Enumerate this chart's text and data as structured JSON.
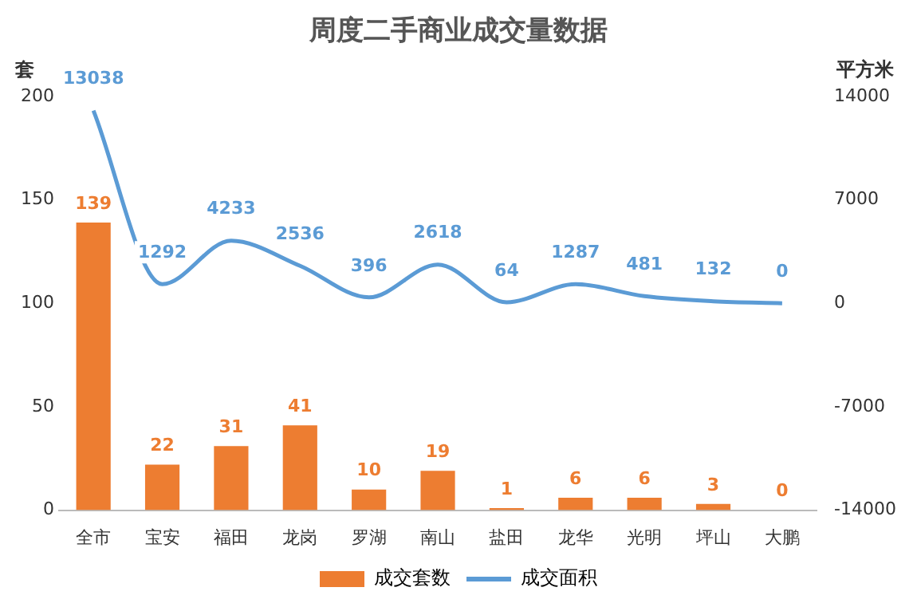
{
  "chart_data": {
    "type": "bar",
    "title": "周度二手商业成交量数据",
    "ylabel": "套",
    "y2label": "平方米",
    "categories": [
      "全市",
      "宝安",
      "福田",
      "龙岗",
      "罗湖",
      "南山",
      "盐田",
      "龙华",
      "光明",
      "坪山",
      "大鹏"
    ],
    "series": [
      {
        "name": "成交套数",
        "color": "#ed7d31",
        "values": [
          139,
          22,
          31,
          41,
          10,
          19,
          1,
          6,
          6,
          3,
          0
        ]
      },
      {
        "name": "成交面积",
        "type": "line",
        "axis": "y2",
        "color": "#5b9bd5",
        "marker": "none",
        "line_style": "solid",
        "values": [
          13038,
          1292,
          4233,
          2536,
          396,
          2618,
          64,
          1287,
          481,
          132,
          0
        ]
      }
    ],
    "ylim": [
      0,
      200
    ],
    "yticks": [
      0,
      50,
      100,
      150,
      200
    ],
    "y2lim": [
      -14000,
      14000
    ],
    "y2ticks": [
      -14000,
      -7000,
      0,
      7000,
      14000
    ],
    "data_labels": true,
    "grid": false,
    "legend": "bottom"
  }
}
